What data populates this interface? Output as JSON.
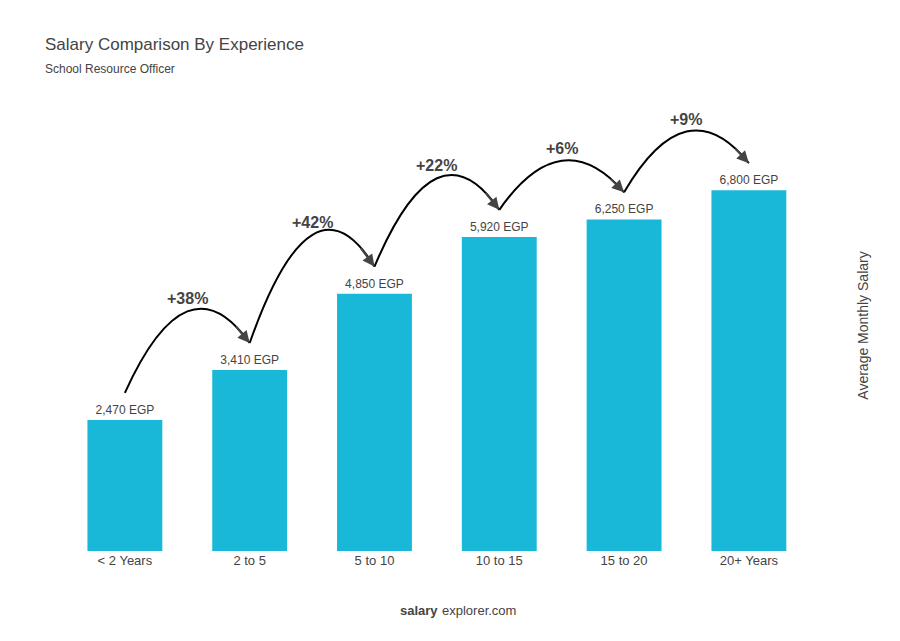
{
  "chart_data": {
    "type": "bar",
    "title": "Salary Comparison By Experience",
    "subtitle": "School Resource Officer",
    "ylabel": "Average Monthly Salary",
    "categories": [
      "< 2 Years",
      "2 to 5",
      "5 to 10",
      "10 to 15",
      "15 to 20",
      "20+ Years"
    ],
    "values": [
      2470,
      3410,
      4850,
      5920,
      6250,
      6800
    ],
    "value_labels": [
      "2,470 EGP",
      "3,410 EGP",
      "4,850 EGP",
      "5,920 EGP",
      "6,250 EGP",
      "6,800 EGP"
    ],
    "data_labels": true,
    "color": "#1ab8d8",
    "changes": [
      38,
      42,
      22,
      6,
      9
    ],
    "change_labels": [
      "+38%",
      "+42%",
      "+22%",
      "+6%",
      "+9%"
    ],
    "annotations": [
      "salary",
      "explorer.com"
    ],
    "ylim": [
      0,
      8500
    ],
    "grid": false,
    "tick_labels": "x"
  }
}
